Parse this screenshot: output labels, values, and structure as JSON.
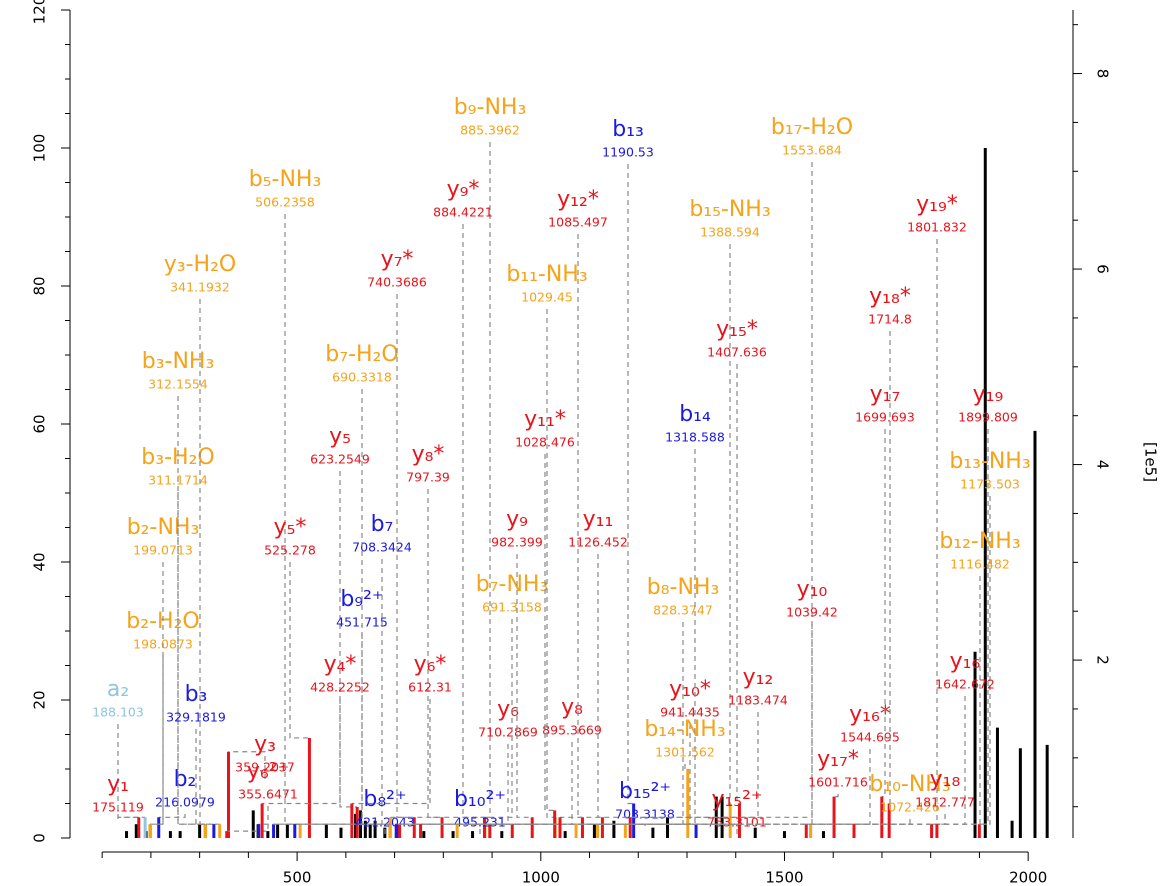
{
  "chart_data": {
    "type": "spectrum",
    "xlim": [
      34,
      2092
    ],
    "xticks": [
      500,
      1000,
      1500,
      2000
    ],
    "xminorticks": [
      100,
      200,
      300,
      400,
      600,
      700,
      800,
      900,
      1100,
      1200,
      1300,
      1400,
      1600,
      1700,
      1800,
      1900
    ],
    "ylim": [
      0,
      120
    ],
    "yticks": [
      0,
      20,
      40,
      60,
      80,
      100,
      120
    ],
    "yminorticks": [
      5,
      10,
      15,
      25,
      30,
      35,
      45,
      50,
      55,
      65,
      70,
      75,
      85,
      90,
      95,
      105,
      110,
      115
    ],
    "y2lim": [
      0.18,
      8.65
    ],
    "y2ticks": [
      2,
      4,
      6,
      8
    ],
    "y2minorticks": [
      0.5,
      1,
      1.5,
      2.5,
      3,
      3.5,
      4.5,
      5,
      5.5,
      6.5,
      7,
      7.5,
      8.5
    ],
    "y2label": "[1e5]",
    "peaks": {
      "color": "#000000",
      "mz": [
        150,
        170,
        190,
        240,
        260,
        300,
        410,
        420,
        440,
        460,
        480,
        560,
        590,
        620,
        630,
        640,
        650,
        660,
        680,
        760,
        820,
        860,
        920,
        1050,
        1110,
        1150,
        1230,
        1260,
        1360,
        1372,
        1440,
        1500,
        1580,
        1891,
        1912,
        1937,
        1967,
        1984,
        2014,
        2039
      ],
      "intensity": [
        1,
        2,
        1,
        1,
        1,
        2,
        4,
        2,
        1,
        2,
        2,
        2,
        1.5,
        3.5,
        4,
        2.5,
        2,
        2.5,
        1.5,
        1,
        1,
        1,
        1,
        1,
        2,
        2.5,
        1.5,
        3,
        6,
        6,
        1.5,
        1,
        1,
        27,
        100,
        16,
        2.5,
        13,
        59,
        13.5
      ]
    },
    "annotations": [
      {
        "ion": "a₂",
        "mz": 188.103,
        "intensity": 3,
        "color": "#8ec5e0"
      },
      {
        "ion": "y₁",
        "mz": 175.119,
        "intensity": 3,
        "color": "#e8141c"
      },
      {
        "ion": "b₂",
        "mz": 216.0979,
        "intensity": 3,
        "color": "#1a1ae0"
      },
      {
        "ion": "b₂-H₂O",
        "mz": 198.0873,
        "intensity": 2,
        "color": "#f5a31b"
      },
      {
        "ion": "b₂-NH₃",
        "mz": 199.0713,
        "intensity": 2,
        "color": "#f5a31b"
      },
      {
        "ion": "b₃-H₂O",
        "mz": 311.1714,
        "intensity": 2,
        "color": "#f5a31b"
      },
      {
        "ion": "b₃-NH₃",
        "mz": 312.1554,
        "intensity": 2,
        "color": "#f5a31b"
      },
      {
        "ion": "y₃-H₂O",
        "mz": 341.1932,
        "intensity": 2,
        "color": "#f5a31b"
      },
      {
        "ion": "b₃",
        "mz": 329.1819,
        "intensity": 2,
        "color": "#1a1ae0"
      },
      {
        "ion": "y₃",
        "mz": 359.2037,
        "intensity": 12.5,
        "color": "#e8141c"
      },
      {
        "ion": "y₆²⁺",
        "mz": 355.6471,
        "intensity": 1,
        "color": "#e8141c"
      },
      {
        "ion": "b₅-NH₃",
        "mz": 506.2358,
        "intensity": 2,
        "color": "#f5a31b"
      },
      {
        "ion": "y₅",
        "mz": 623.2549,
        "intensity": 4.5,
        "color": "#e8141c"
      },
      {
        "ion": "y₅*",
        "mz": 525.278,
        "intensity": 14.5,
        "color": "#e8141c"
      },
      {
        "ion": "y₄*",
        "mz": 428.2252,
        "intensity": 5,
        "color": "#e8141c"
      },
      {
        "ion": "b₉²⁺",
        "mz": 451.715,
        "intensity": 2,
        "color": "#1a1ae0"
      },
      {
        "ion": "b₇",
        "mz": 708.3424,
        "intensity": 2,
        "color": "#1a1ae0"
      },
      {
        "ion": "b₇-H₂O",
        "mz": 690.3318,
        "intensity": 2,
        "color": "#f5a31b"
      },
      {
        "ion": "y₇*",
        "mz": 740.3686,
        "intensity": 3,
        "color": "#e8141c"
      },
      {
        "ion": "b₈²⁺",
        "mz": 421.2043,
        "intensity": 2,
        "color": "#1a1ae0"
      },
      {
        "ion": "y₈*",
        "mz": 797.39,
        "intensity": 3,
        "color": "#e8141c"
      },
      {
        "ion": "y₆*",
        "mz": 612.31,
        "intensity": 5,
        "color": "#e8141c"
      },
      {
        "ion": "b₉-NH₃",
        "mz": 885.3962,
        "intensity": 3,
        "color": "#f5a31b"
      },
      {
        "ion": "y₉*",
        "mz": 884.4221,
        "intensity": 3,
        "color": "#e8141c"
      },
      {
        "ion": "y₆",
        "mz": 710.2869,
        "intensity": 2,
        "color": "#e8141c"
      },
      {
        "ion": "y₈",
        "mz": 895.3669,
        "intensity": 2,
        "color": "#e8141c"
      },
      {
        "ion": "b₇-NH₃",
        "mz": 691.3158,
        "intensity": 3,
        "color": "#f5a31b"
      },
      {
        "ion": "y₉",
        "mz": 982.399,
        "intensity": 3,
        "color": "#e8141c"
      },
      {
        "ion": "b₁₀²⁺",
        "mz": 495.231,
        "intensity": 2,
        "color": "#1a1ae0"
      },
      {
        "ion": "b₁₁-NH₃",
        "mz": 1029.45,
        "intensity": 3,
        "color": "#f5a31b"
      },
      {
        "ion": "y₁₁*",
        "mz": 1028.476,
        "intensity": 4,
        "color": "#e8141c"
      },
      {
        "ion": "y₁₂*",
        "mz": 1085.497,
        "intensity": 3,
        "color": "#e8141c"
      },
      {
        "ion": "y₁₁",
        "mz": 1126.452,
        "intensity": 3,
        "color": "#e8141c"
      },
      {
        "ion": "b₁₃",
        "mz": 1190.53,
        "intensity": 5,
        "color": "#1a1ae0"
      },
      {
        "ion": "b₈-NH₃",
        "mz": 828.3747,
        "intensity": 2,
        "color": "#f5a31b"
      },
      {
        "ion": "y₁₀*",
        "mz": 941.4435,
        "intensity": 2,
        "color": "#e8141c"
      },
      {
        "ion": "b₁₄-NH₃",
        "mz": 1301.562,
        "intensity": 10,
        "color": "#f5a31b"
      },
      {
        "ion": "b₁₅²⁺",
        "mz": 703.3138,
        "intensity": 2,
        "color": "#1a1ae0"
      },
      {
        "ion": "b₁₄",
        "mz": 1318.588,
        "intensity": 2,
        "color": "#1a1ae0"
      },
      {
        "ion": "y₁₅*",
        "mz": 1407.636,
        "intensity": 5,
        "color": "#e8141c"
      },
      {
        "ion": "b₁₅-NH₃",
        "mz": 1388.594,
        "intensity": 5,
        "color": "#f5a31b"
      },
      {
        "ion": "b₁₇-H₂O",
        "mz": 1553.684,
        "intensity": 2,
        "color": "#f5a31b"
      },
      {
        "ion": "y₁₀",
        "mz": 1039.42,
        "intensity": 3,
        "color": "#e8141c"
      },
      {
        "ion": "y₁₂",
        "mz": 1183.474,
        "intensity": 3,
        "color": "#e8141c"
      },
      {
        "ion": "y₁₅²⁺",
        "mz": 753.3101,
        "intensity": 2,
        "color": "#e8141c"
      },
      {
        "ion": "y₁₆*",
        "mz": 1544.695,
        "intensity": 2,
        "color": "#e8141c"
      },
      {
        "ion": "y₁₇*",
        "mz": 1601.716,
        "intensity": 6,
        "color": "#e8141c"
      },
      {
        "ion": "y₁₇",
        "mz": 1699.693,
        "intensity": 6,
        "color": "#e8141c"
      },
      {
        "ion": "y₁₈*",
        "mz": 1714.8,
        "intensity": 5,
        "color": "#e8141c"
      },
      {
        "ion": "y₁₉*",
        "mz": 1801.832,
        "intensity": 2,
        "color": "#e8141c"
      },
      {
        "ion": "y₁₉",
        "mz": 1899.809,
        "intensity": 2,
        "color": "#e8141c"
      },
      {
        "ion": "b₁₃-NH₃",
        "mz": 1173.503,
        "intensity": 2,
        "color": "#f5a31b"
      },
      {
        "ion": "b₁₂-NH₃",
        "mz": 1116.482,
        "intensity": 2,
        "color": "#f5a31b"
      },
      {
        "ion": "y₁₆",
        "mz": 1642.672,
        "intensity": 2,
        "color": "#e8141c"
      },
      {
        "ion": "b₁₀-NH₃",
        "mz": 1072.426,
        "intensity": 2,
        "color": "#f5a31b"
      },
      {
        "ion": "y₁₈",
        "mz": 1812.777,
        "intensity": 2,
        "color": "#e8141c"
      }
    ]
  }
}
